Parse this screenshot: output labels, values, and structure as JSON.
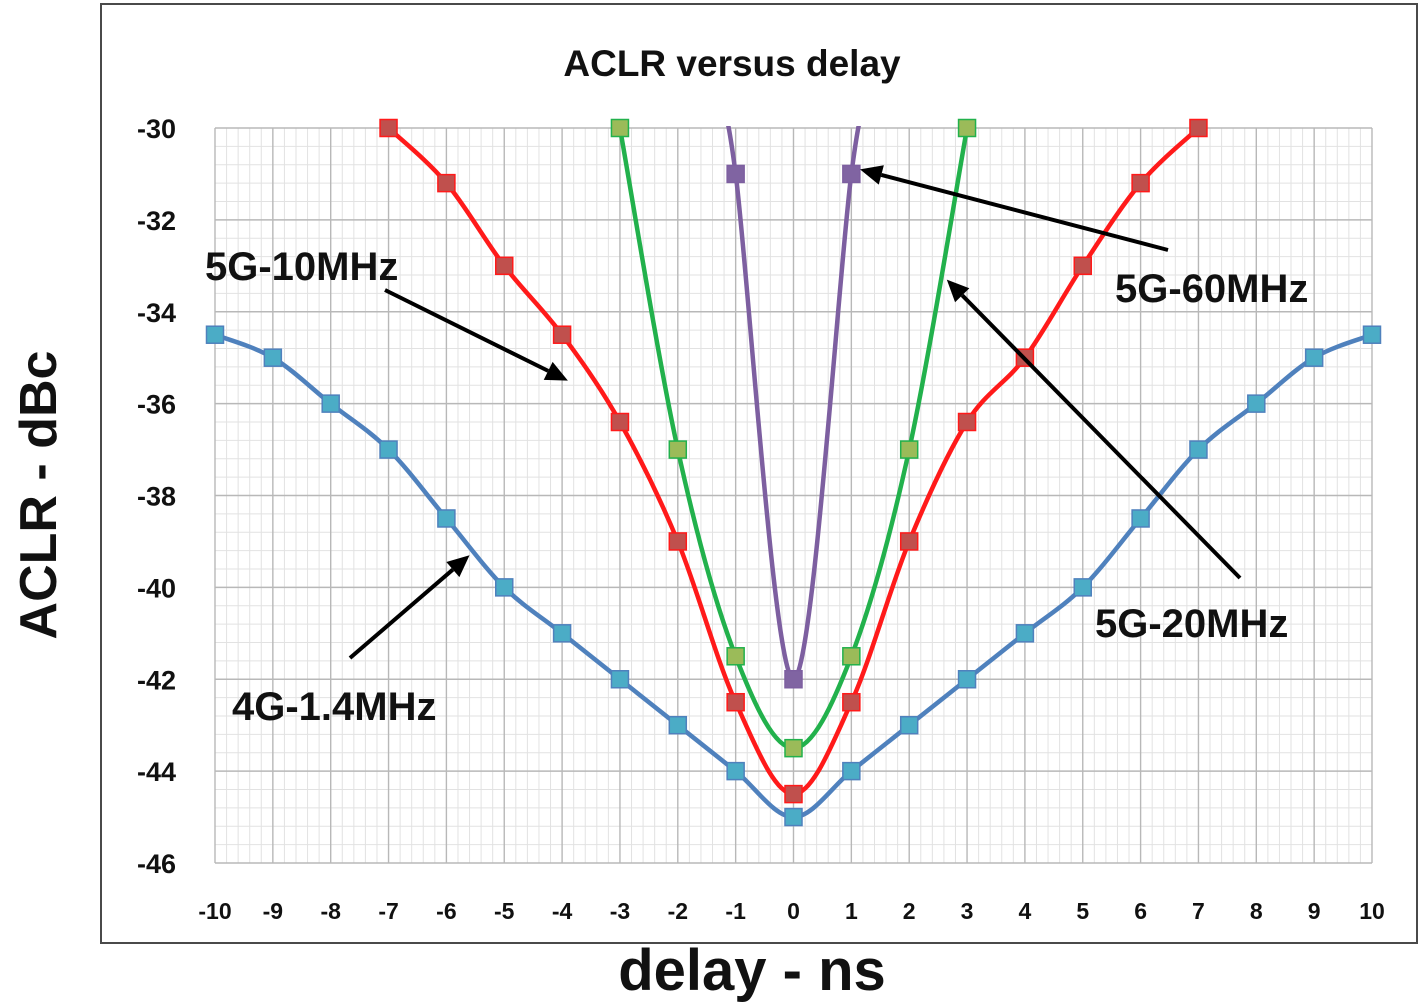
{
  "chart_data": {
    "type": "line",
    "title": "ACLR versus delay",
    "xlabel": "delay - ns",
    "ylabel": "ACLR - dBc",
    "xlim": [
      -10,
      10
    ],
    "ylim": [
      -46,
      -30
    ],
    "x_ticks": [
      -10,
      -9,
      -8,
      -7,
      -6,
      -5,
      -4,
      -3,
      -2,
      -1,
      0,
      1,
      2,
      3,
      4,
      5,
      6,
      7,
      8,
      9,
      10
    ],
    "y_ticks": [
      -30,
      -32,
      -34,
      -36,
      -38,
      -40,
      -42,
      -44,
      -46
    ],
    "grid": true,
    "legend": "none",
    "series": [
      {
        "name": "4G-1.4MHz",
        "color": "#4f81bd",
        "marker_color": "#4bacc6",
        "x": [
          -10,
          -9,
          -8,
          -7,
          -6,
          -5,
          -4,
          -3,
          -2,
          -1,
          0,
          1,
          2,
          3,
          4,
          5,
          6,
          7,
          8,
          9,
          10
        ],
        "y": [
          -34.5,
          -35,
          -36,
          -37,
          -38.5,
          -40,
          -41,
          -42,
          -43,
          -44,
          -45,
          -44,
          -43,
          -42,
          -41,
          -40,
          -38.5,
          -37,
          -36,
          -35,
          -34.5
        ]
      },
      {
        "name": "5G-10MHz",
        "color": "#ff1a1a",
        "marker_color": "#c0504d",
        "x": [
          -7,
          -6,
          -5,
          -4,
          -3,
          -2,
          -1,
          0,
          1,
          2,
          3,
          4,
          5,
          6,
          7
        ],
        "y": [
          -30,
          -31.2,
          -33,
          -34.5,
          -36.4,
          -39,
          -42.5,
          -44.5,
          -42.5,
          -39,
          -36.4,
          -35,
          -33,
          -31.2,
          -30
        ]
      },
      {
        "name": "5G-20MHz",
        "color": "#22b14c",
        "marker_color": "#9bbb59",
        "x": [
          -3,
          -2,
          -1,
          0,
          1,
          2,
          3
        ],
        "y": [
          -30,
          -37,
          -41.5,
          -43.5,
          -41.5,
          -37,
          -30
        ]
      },
      {
        "name": "5G-60MHz",
        "color": "#7d5fa0",
        "marker_color": "#8064a2",
        "x": [
          -1.3,
          -1,
          0,
          1,
          1.3
        ],
        "y": [
          -29.5,
          -31,
          -42,
          -31,
          -29.5
        ],
        "marker_x": [
          -1,
          0,
          1
        ]
      }
    ],
    "annotations": [
      {
        "text": "5G-10MHz",
        "series": "5G-10MHz",
        "target": [
          -3.9,
          -35.5
        ]
      },
      {
        "text": "5G-60MHz",
        "series": "5G-60MHz",
        "target": [
          1.15,
          -30.9
        ]
      },
      {
        "text": "5G-20MHz",
        "series": "5G-20MHz",
        "target": [
          2.65,
          -33.3
        ]
      },
      {
        "text": "4G-1.4MHz",
        "series": "4G-1.4MHz",
        "target": [
          -5.6,
          -39.3
        ]
      }
    ]
  }
}
